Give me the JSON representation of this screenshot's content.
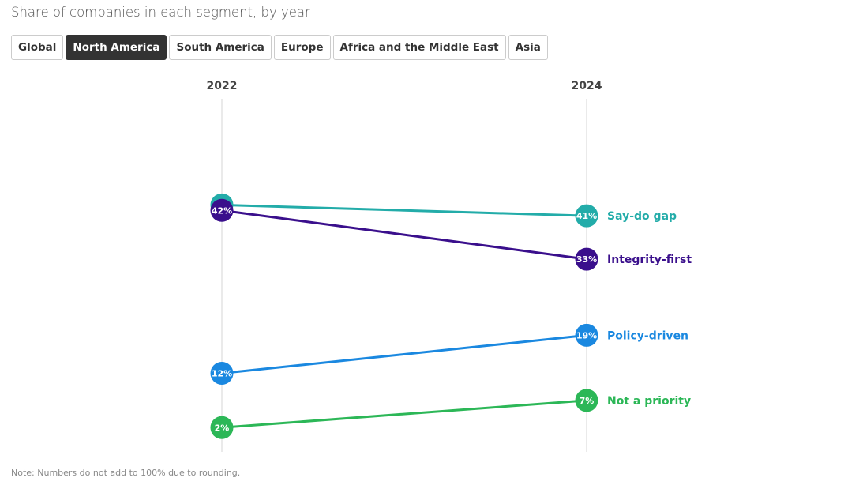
{
  "subtitle": "Share of companies in each segment, by year",
  "tabs": [
    {
      "label": "Global",
      "active": false
    },
    {
      "label": "North America",
      "active": true
    },
    {
      "label": "South America",
      "active": false
    },
    {
      "label": "Europe",
      "active": false
    },
    {
      "label": "Africa and the Middle East",
      "active": false
    },
    {
      "label": "Asia",
      "active": false
    }
  ],
  "note": "Note: Numbers do not add to 100% due to rounding.",
  "chart_data": {
    "type": "slope",
    "categories": [
      "2022",
      "2024"
    ],
    "series": [
      {
        "name": "Say-do gap",
        "values": [
          43,
          41
        ],
        "color": "#23aca9"
      },
      {
        "name": "Integrity-first",
        "values": [
          42,
          33
        ],
        "color": "#3a0f8c"
      },
      {
        "name": "Policy-driven",
        "values": [
          12,
          19
        ],
        "color": "#1a88e0"
      },
      {
        "name": "Not a priority",
        "values": [
          2,
          7
        ],
        "color": "#2cb757"
      }
    ],
    "grid": false,
    "legend": "right-end labels"
  }
}
